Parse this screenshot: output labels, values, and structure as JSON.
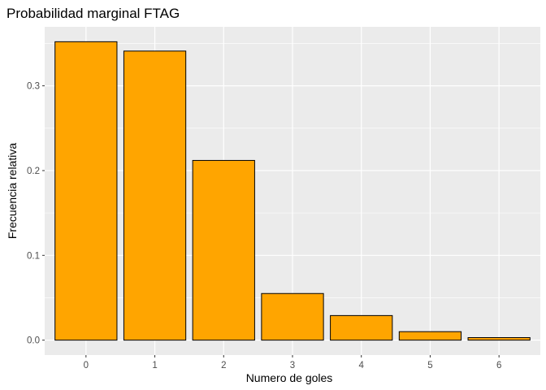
{
  "chart_data": {
    "type": "bar",
    "title": "Probabilidad marginal FTAG",
    "xlabel": "Numero de goles",
    "ylabel": "Frecuencia relativa",
    "categories": [
      "0",
      "1",
      "2",
      "3",
      "4",
      "5",
      "6"
    ],
    "values": [
      0.352,
      0.341,
      0.212,
      0.055,
      0.029,
      0.01,
      0.003
    ],
    "ylim": [
      -0.0176,
      0.3696
    ],
    "yticks": [
      0.0,
      0.1,
      0.2,
      0.3
    ],
    "ytick_labels": [
      "0.0",
      "0.1",
      "0.2",
      "0.3"
    ],
    "grid": true,
    "bar_fill": "#FFA500",
    "bar_stroke": "#000000",
    "panel_background": "#EBEBEB",
    "grid_color": "#FFFFFF"
  }
}
